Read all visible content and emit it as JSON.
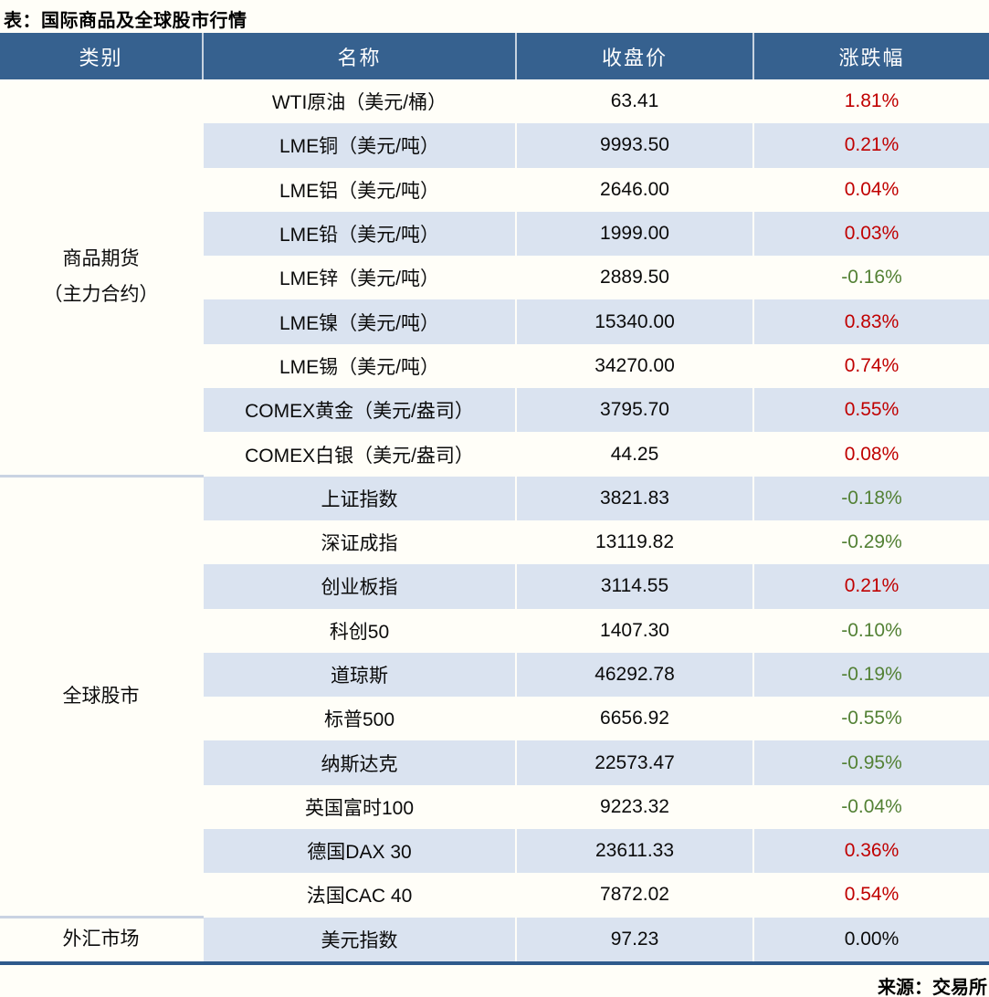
{
  "title": "表：国际商品及全球股市行情",
  "source": "来源：交易所",
  "colors": {
    "header_bg": "#36618F",
    "stripe_bg": "#DAE3F0",
    "row_bg": "#FFFEF8",
    "bottom_rule": "#2E5A8C",
    "group_separator": "#C9D3E2",
    "up_red": "#C00000",
    "down_green": "#538135",
    "flat_black": "#0B0B0B"
  },
  "chart_data": {
    "type": "table",
    "title": "表：国际商品及全球股市行情",
    "columns": [
      "类别",
      "名称",
      "收盘价",
      "涨跌幅"
    ],
    "change_color_rule": "up=red #C00000, down=green #538135, flat=black",
    "groups": [
      {
        "category": "商品期货\n（主力合约）",
        "rows": [
          {
            "name": "WTI原油（美元/桶）",
            "close": "63.41",
            "change": "1.81%",
            "direction": "up"
          },
          {
            "name": "LME铜（美元/吨）",
            "close": "9993.50",
            "change": "0.21%",
            "direction": "up"
          },
          {
            "name": "LME铝（美元/吨）",
            "close": "2646.00",
            "change": "0.04%",
            "direction": "up"
          },
          {
            "name": "LME铅（美元/吨）",
            "close": "1999.00",
            "change": "0.03%",
            "direction": "up"
          },
          {
            "name": "LME锌（美元/吨）",
            "close": "2889.50",
            "change": "-0.16%",
            "direction": "down"
          },
          {
            "name": "LME镍（美元/吨）",
            "close": "15340.00",
            "change": "0.83%",
            "direction": "up"
          },
          {
            "name": "LME锡（美元/吨）",
            "close": "34270.00",
            "change": "0.74%",
            "direction": "up"
          },
          {
            "name": "COMEX黄金（美元/盎司）",
            "close": "3795.70",
            "change": "0.55%",
            "direction": "up"
          },
          {
            "name": "COMEX白银（美元/盎司）",
            "close": "44.25",
            "change": "0.08%",
            "direction": "up"
          }
        ]
      },
      {
        "category": "全球股市",
        "rows": [
          {
            "name": "上证指数",
            "close": "3821.83",
            "change": "-0.18%",
            "direction": "down"
          },
          {
            "name": "深证成指",
            "close": "13119.82",
            "change": "-0.29%",
            "direction": "down"
          },
          {
            "name": "创业板指",
            "close": "3114.55",
            "change": "0.21%",
            "direction": "up"
          },
          {
            "name": "科创50",
            "close": "1407.30",
            "change": "-0.10%",
            "direction": "down"
          },
          {
            "name": "道琼斯",
            "close": "46292.78",
            "change": "-0.19%",
            "direction": "down"
          },
          {
            "name": "标普500",
            "close": "6656.92",
            "change": "-0.55%",
            "direction": "down"
          },
          {
            "name": "纳斯达克",
            "close": "22573.47",
            "change": "-0.95%",
            "direction": "down"
          },
          {
            "name": "英国富时100",
            "close": "9223.32",
            "change": "-0.04%",
            "direction": "down"
          },
          {
            "name": "德国DAX 30",
            "close": "23611.33",
            "change": "0.36%",
            "direction": "up"
          },
          {
            "name": "法国CAC 40",
            "close": "7872.02",
            "change": "0.54%",
            "direction": "up"
          }
        ]
      },
      {
        "category": "外汇市场",
        "rows": [
          {
            "name": "美元指数",
            "close": "97.23",
            "change": "0.00%",
            "direction": "flat"
          }
        ]
      }
    ]
  }
}
